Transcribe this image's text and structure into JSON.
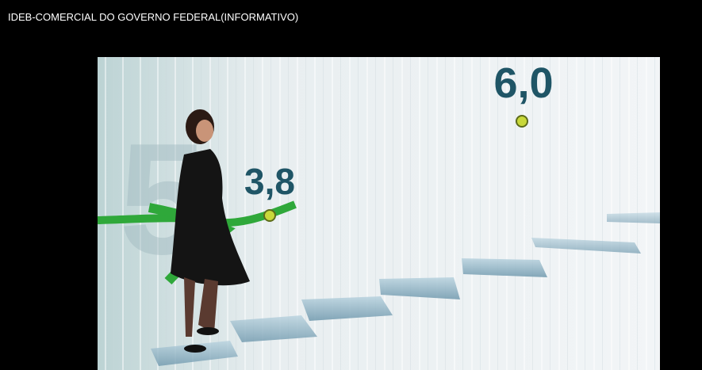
{
  "header": {
    "title": "IDEB-COMERCIAL DO GOVERNO FEDERAL(INFORMATIVO)"
  },
  "scene": {
    "labels": [
      "3,8",
      "6,0"
    ]
  }
}
